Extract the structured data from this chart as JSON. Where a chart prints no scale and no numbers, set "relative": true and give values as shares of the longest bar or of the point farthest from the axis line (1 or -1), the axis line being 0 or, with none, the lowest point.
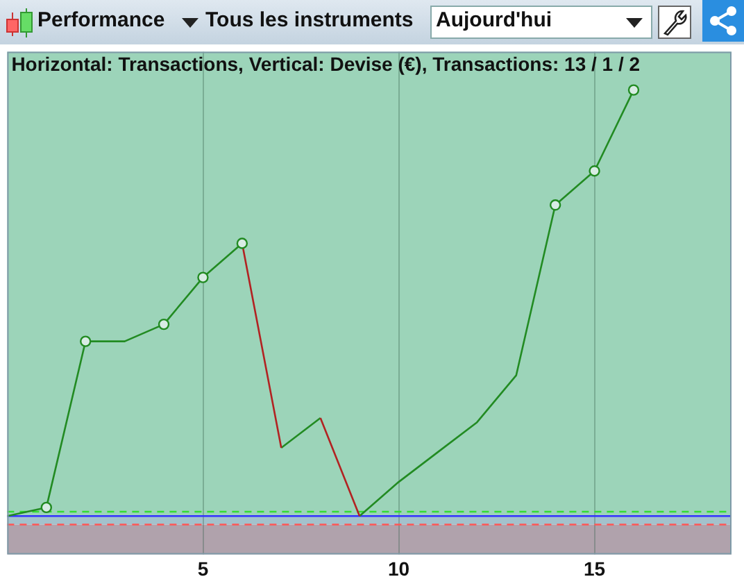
{
  "chart_data": {
    "type": "line",
    "title": "Horizontal: Transactions, Vertical: Devise (€), Transactions: 13 / 1 / 2",
    "relative": true,
    "xlim": [
      0,
      18.5
    ],
    "xticks": [
      5,
      10,
      15
    ],
    "grid": "x",
    "legend": false,
    "tick_labels": "x",
    "series": [
      {
        "color": "#228b22",
        "marker": "none",
        "x": [
          0,
          1,
          2,
          3,
          4,
          5,
          6,
          6.5,
          7,
          8,
          8.5,
          9,
          10,
          11,
          12,
          13,
          14,
          15,
          16
        ],
        "values": [
          0,
          0.02,
          0.41,
          0.41,
          0.45,
          0.56,
          0.64,
          null,
          0.16,
          0.23,
          null,
          0,
          0.08,
          0.15,
          0.22,
          0.33,
          0.73,
          0.81,
          1
        ]
      },
      {
        "color": "#b22222",
        "marker": "none",
        "x": [
          6,
          7,
          7.5,
          8,
          9
        ],
        "values": [
          0.64,
          0.16,
          null,
          0.23,
          0
        ]
      },
      {
        "type": "scatter",
        "color": "#228b22",
        "marker": "circle",
        "x": [
          1,
          2,
          4,
          5,
          6,
          14,
          15,
          16
        ],
        "values": [
          0.02,
          0.41,
          0.45,
          0.56,
          0.64,
          0.73,
          0.81,
          1
        ]
      }
    ],
    "bands": [
      {
        "axis": "y",
        "from": 0,
        "to": 1.09,
        "color": "#9cd4b9"
      },
      {
        "axis": "y",
        "from": -0.02,
        "to": 0,
        "color": "#a3c2cc"
      },
      {
        "axis": "y",
        "from": -0.09,
        "to": -0.02,
        "color": "#b0a2ac"
      }
    ],
    "ref_lines": [
      {
        "axis": "y",
        "value": 0,
        "color": "#3333ff",
        "line_style": "solid"
      },
      {
        "axis": "y",
        "value": 0.01,
        "color": "#33dd33",
        "line_style": "dashed"
      },
      {
        "axis": "y",
        "value": -0.02,
        "color": "#ff5555",
        "line_style": "dashed"
      }
    ],
    "annotations": [
      "Performance",
      "Tous les instruments",
      "Aujourd'hui"
    ]
  }
}
